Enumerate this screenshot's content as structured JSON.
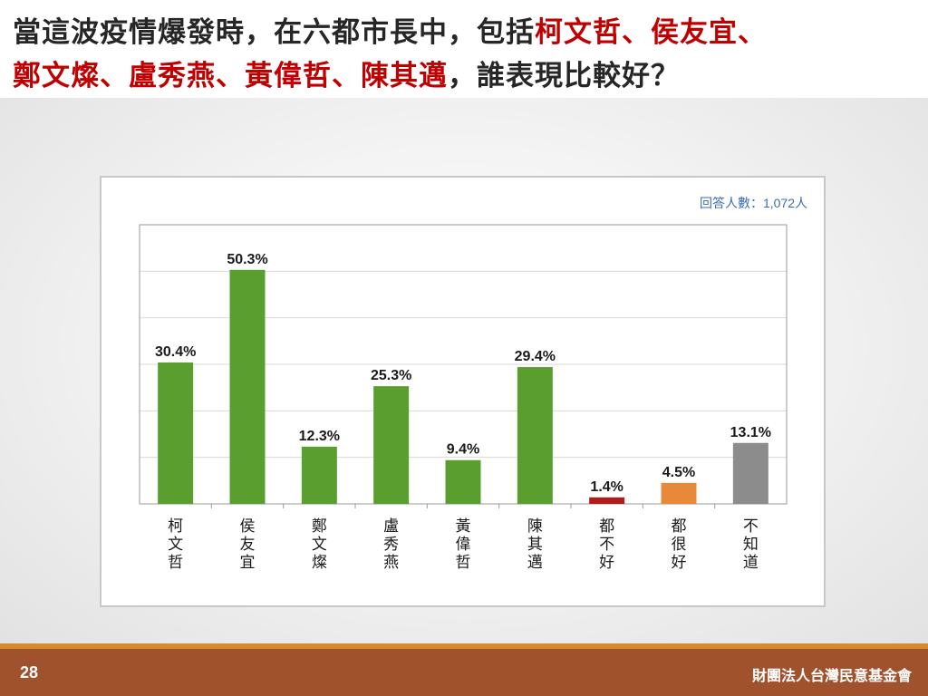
{
  "title": {
    "line1_plain": "當這波疫情爆發時，在六都市長中，包括",
    "line1_hl": "柯文哲、侯友宜、",
    "line2_hl": "鄭文燦、盧秀燕、黃偉哲、陳其邁",
    "line2_plain": "，誰表現比較好？"
  },
  "respondents": "回答人數：1,072人",
  "footer": {
    "page_number": "28",
    "organization": "財團法人台灣民意基金會"
  },
  "colors": {
    "title_highlight": "#c00000",
    "green": "#5a9e2f",
    "red": "#b01c1c",
    "orange": "#e8893a",
    "gray": "#8c8c8c",
    "footer": "#a0522d",
    "footer_stripe": "#d98b2a"
  },
  "chart_data": {
    "type": "bar",
    "title": "",
    "xlabel": "",
    "ylabel": "",
    "ylim": [
      0,
      60
    ],
    "grid": true,
    "categories": [
      "柯文哲",
      "侯友宜",
      "鄭文燦",
      "盧秀燕",
      "黃偉哲",
      "陳其邁",
      "都不好",
      "都很好",
      "不知道"
    ],
    "values": [
      30.4,
      50.3,
      12.3,
      25.3,
      9.4,
      29.4,
      1.4,
      4.5,
      13.1
    ],
    "value_labels": [
      "30.4%",
      "50.3%",
      "12.3%",
      "25.3%",
      "9.4%",
      "29.4%",
      "1.4%",
      "4.5%",
      "13.1%"
    ],
    "bar_colors": [
      "#5a9e2f",
      "#5a9e2f",
      "#5a9e2f",
      "#5a9e2f",
      "#5a9e2f",
      "#5a9e2f",
      "#b01c1c",
      "#e8893a",
      "#8c8c8c"
    ]
  }
}
